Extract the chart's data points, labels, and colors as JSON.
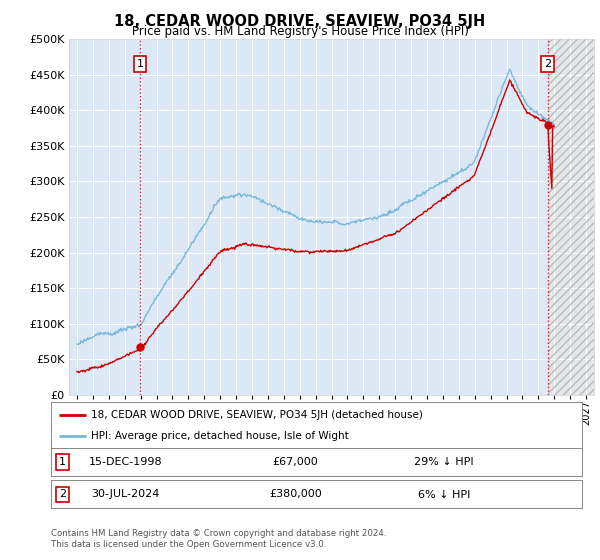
{
  "title": "18, CEDAR WOOD DRIVE, SEAVIEW, PO34 5JH",
  "subtitle": "Price paid vs. HM Land Registry's House Price Index (HPI)",
  "legend_line1": "18, CEDAR WOOD DRIVE, SEAVIEW, PO34 5JH (detached house)",
  "legend_line2": "HPI: Average price, detached house, Isle of Wight",
  "annotation1_label": "1",
  "annotation1_date": "15-DEC-1998",
  "annotation1_price": "£67,000",
  "annotation1_hpi": "29% ↓ HPI",
  "annotation2_label": "2",
  "annotation2_date": "30-JUL-2024",
  "annotation2_price": "£380,000",
  "annotation2_hpi": "6% ↓ HPI",
  "footer": "Contains HM Land Registry data © Crown copyright and database right 2024.\nThis data is licensed under the Open Government Licence v3.0.",
  "sale1_x": 1998.96,
  "sale1_y": 67000,
  "sale2_x": 2024.58,
  "sale2_y": 380000,
  "hpi_color": "#7ab8d9",
  "price_color": "#cc0000",
  "dashed_line_color": "#cc0000",
  "background_color": "#ffffff",
  "plot_bg_color": "#dce8f5",
  "ylim": [
    0,
    500000
  ],
  "xlim_start": 1994.5,
  "xlim_end": 2027.5,
  "hatch_color": "#aaaaaa",
  "ytick_step": 50000,
  "xtick_start": 1995,
  "xtick_end": 2027
}
